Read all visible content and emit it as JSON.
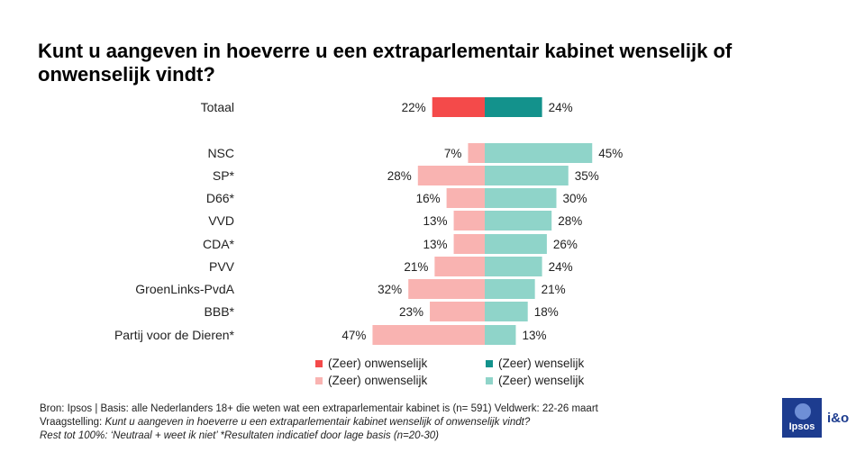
{
  "title": "Kunt u aangeven in hoeverre u een extraparlementair kabinet wenselijk of onwenselijk vindt?",
  "chart_data": {
    "type": "bar",
    "orientation": "horizontal-diverging",
    "categories": [
      "Totaal",
      "NSC",
      "SP*",
      "D66*",
      "VVD",
      "CDA*",
      "PVV",
      "GroenLinks-PvdA",
      "BBB*",
      "Partij voor de Dieren*"
    ],
    "series": [
      {
        "name": "(Zeer) onwenselijk",
        "values": [
          22,
          7,
          28,
          16,
          13,
          13,
          21,
          32,
          23,
          47
        ]
      },
      {
        "name": "(Zeer) wenselijk",
        "values": [
          24,
          45,
          35,
          30,
          28,
          26,
          24,
          21,
          18,
          13
        ]
      }
    ],
    "value_suffix": "%",
    "colors": {
      "total_negative": "#f44a4a",
      "total_positive": "#13928c",
      "party_negative": "#f9b3b1",
      "party_positive": "#8fd4c9"
    }
  },
  "legend": [
    {
      "label": "(Zeer) onwenselijk",
      "color": "#f44a4a"
    },
    {
      "label": "(Zeer) wenselijk",
      "color": "#13928c"
    },
    {
      "label": "(Zeer) onwenselijk",
      "color": "#f9b3b1"
    },
    {
      "label": "(Zeer) wenselijk",
      "color": "#8fd4c9"
    }
  ],
  "footer": {
    "line1": "Bron: Ipsos | Basis: alle Nederlanders  18+ die weten wat een extraparlementair  kabinet is (n= 591) Veldwerk: 22-26 maart",
    "line2_prefix": "Vraagstelling: ",
    "line2_question": "Kunt u aangeven  in hoeverre  u een extraparlementair  kabinet wenselijk of onwenselijk vindt?",
    "line3": "Rest tot 100%: ‘Neutraal  + weet ik niet’  *Resultaten indicatief door lage basis (n=20-30)"
  },
  "logo": {
    "brand": "Ipsos",
    "suffix": "i&o"
  }
}
